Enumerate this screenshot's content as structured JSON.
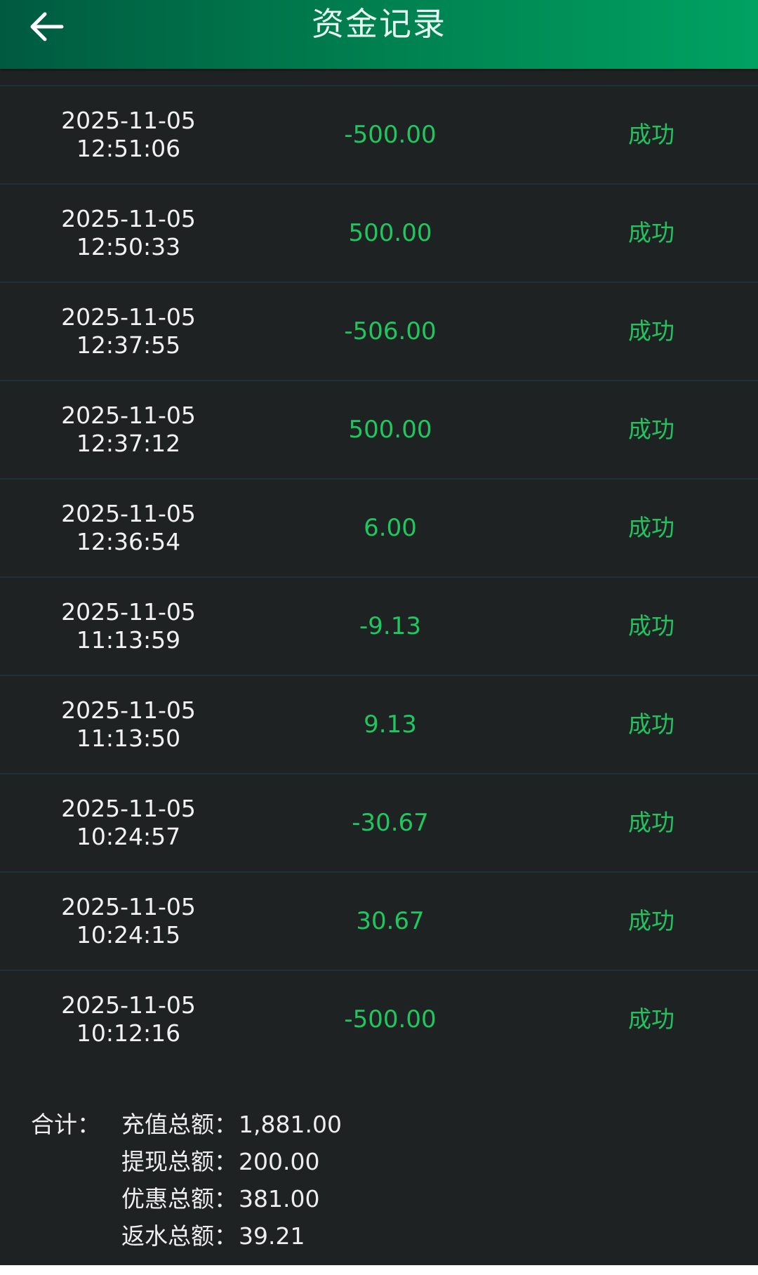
{
  "header": {
    "title": "资金记录",
    "back_icon": "arrow-left-icon"
  },
  "colors": {
    "accent_green": "#1ec85e",
    "background": "#1e2222",
    "header_gradient": [
      "#005a40",
      "#00a262"
    ]
  },
  "records": [
    {
      "date": "2025-11-05",
      "time": "12:51:06",
      "amount": "-500.00",
      "status": "成功"
    },
    {
      "date": "2025-11-05",
      "time": "12:50:33",
      "amount": "500.00",
      "status": "成功"
    },
    {
      "date": "2025-11-05",
      "time": "12:37:55",
      "amount": "-506.00",
      "status": "成功"
    },
    {
      "date": "2025-11-05",
      "time": "12:37:12",
      "amount": "500.00",
      "status": "成功"
    },
    {
      "date": "2025-11-05",
      "time": "12:36:54",
      "amount": "6.00",
      "status": "成功"
    },
    {
      "date": "2025-11-05",
      "time": "11:13:59",
      "amount": "-9.13",
      "status": "成功"
    },
    {
      "date": "2025-11-05",
      "time": "11:13:50",
      "amount": "9.13",
      "status": "成功"
    },
    {
      "date": "2025-11-05",
      "time": "10:24:57",
      "amount": "-30.67",
      "status": "成功"
    },
    {
      "date": "2025-11-05",
      "time": "10:24:15",
      "amount": "30.67",
      "status": "成功"
    },
    {
      "date": "2025-11-05",
      "time": "10:12:16",
      "amount": "-500.00",
      "status": "成功"
    }
  ],
  "summary": {
    "label": "合计：",
    "items": [
      {
        "label": "充值总额：",
        "value": "1,881.00"
      },
      {
        "label": "提现总额：",
        "value": "200.00"
      },
      {
        "label": "优惠总额：",
        "value": "381.00"
      },
      {
        "label": "返水总额：",
        "value": "39.21"
      }
    ]
  }
}
